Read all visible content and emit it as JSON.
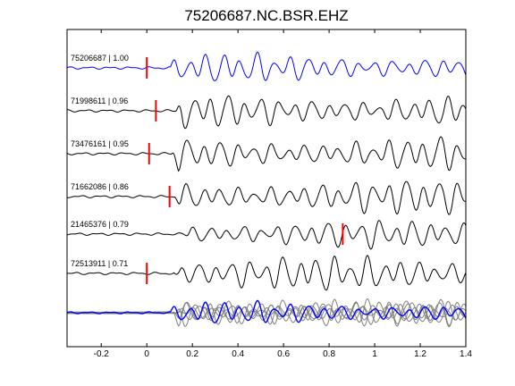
{
  "chart_data": {
    "type": "line",
    "title": "75206687.NC.BSR.EHZ",
    "xlabel": "",
    "ylabel": "",
    "xlim": [
      -0.35,
      1.4
    ],
    "xticks": [
      -0.2,
      0,
      0.2,
      0.4,
      0.6,
      0.8,
      1,
      1.2,
      1.4
    ],
    "xtick_labels": [
      "-0.2",
      "0",
      "0.2",
      "0.4",
      "0.6",
      "0.8",
      "1",
      "1.2",
      "1.4"
    ],
    "grid": false,
    "colors": {
      "master": "#0000ff",
      "trace": "#000000",
      "overlay": "#808080",
      "pick": "#ff0000"
    },
    "series": [
      {
        "label": "75206687 | 1.00",
        "pick_time": 0.0,
        "onset": 0.1,
        "amplitude": 0.85
      },
      {
        "label": "71998611 | 0.96",
        "pick_time": 0.04,
        "onset": 0.13,
        "amplitude": 1.0
      },
      {
        "label": "73476161 | 0.95",
        "pick_time": 0.01,
        "onset": 0.11,
        "amplitude": 1.0
      },
      {
        "label": "71662086 | 0.86",
        "pick_time": 0.1,
        "onset": 0.12,
        "amplitude": 1.0
      },
      {
        "label": "21465376 | 0.79",
        "pick_time": 0.86,
        "onset": 0.16,
        "amplitude": 0.8
      },
      {
        "label": "72513911 | 0.71",
        "pick_time": 0.0,
        "onset": 0.12,
        "amplitude": 1.0
      }
    ]
  }
}
